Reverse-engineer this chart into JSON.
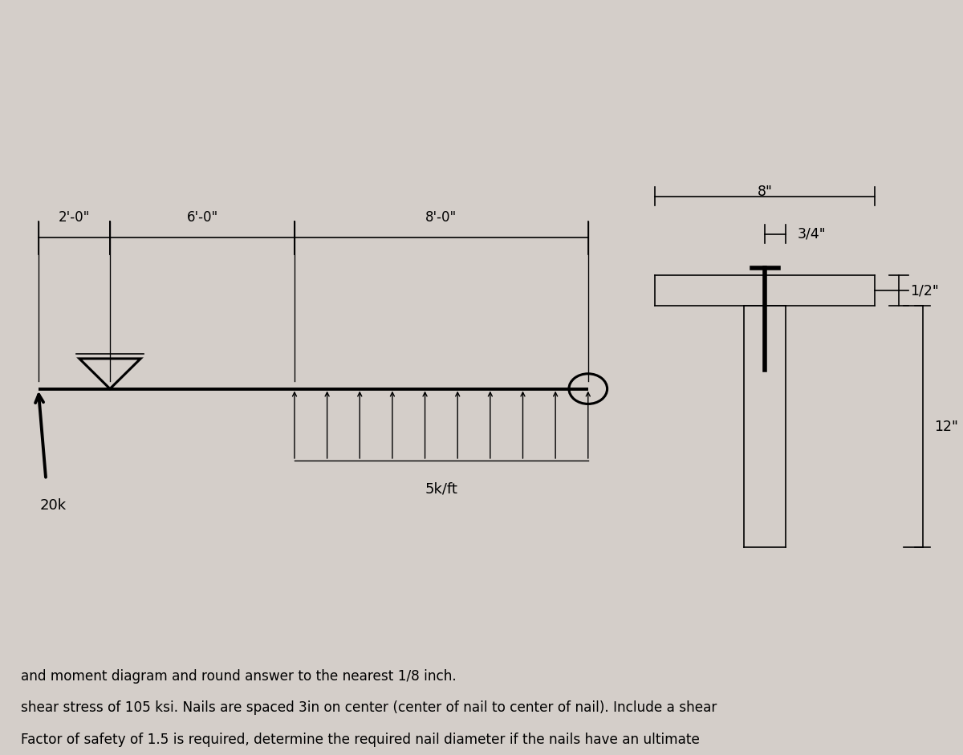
{
  "bg_color": "#d4cec9",
  "text_color": "#000000",
  "title_lines": [
    "Factor of safety of 1.5 is required, determine the required nail diameter if the nails have an ultimate",
    "shear stress of 105 ksi. Nails are spaced 3in on center (center of nail to center of nail). Include a shear",
    "and moment diagram and round answer to the nearest 1/8 inch."
  ],
  "label_20k": "20k",
  "label_5kft": "5k/ft",
  "label_2ft": "2'-0\"",
  "label_6ft": "6'-0\"",
  "label_8ft": "8'-0\"",
  "label_12in": "12\"",
  "label_34in": "3/4\"",
  "label_8in": "8\"",
  "label_half": "1/2\""
}
